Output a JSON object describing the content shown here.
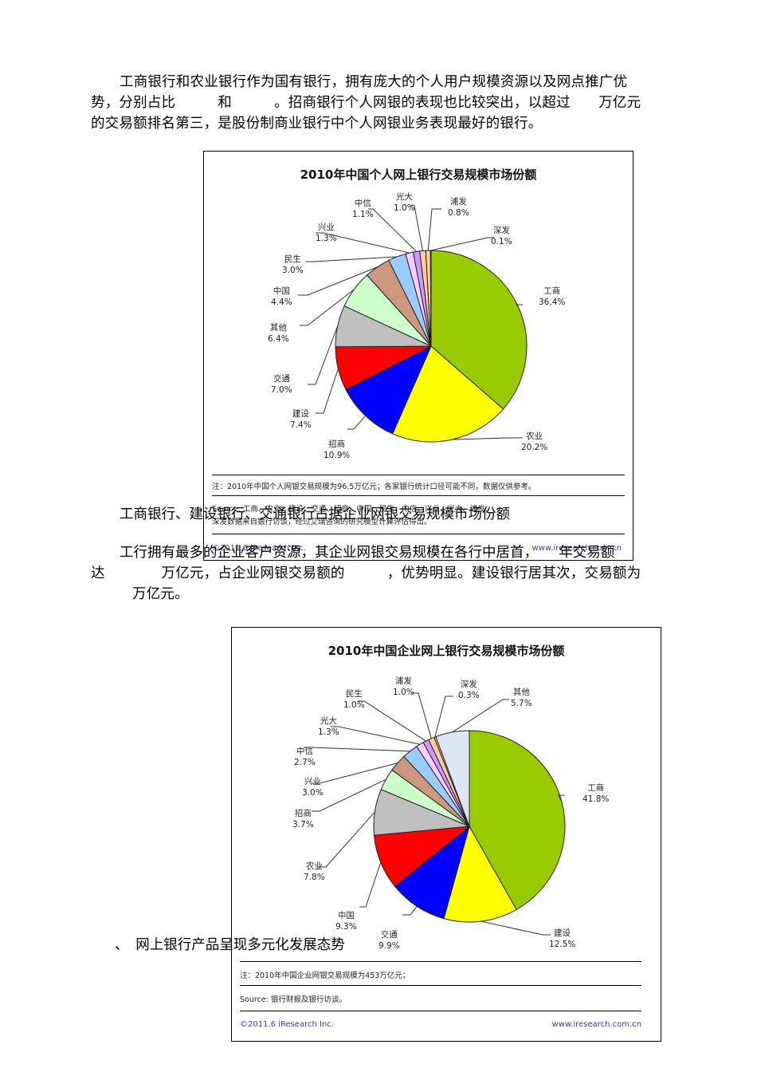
{
  "paragraph1": {
    "line1": "工商银行和农业银行作为国有银行，拥有庞大的个人用户规模资源以及网点推广优",
    "line2": "势，分别占比　　　和　　　。招商银行个人网银的表现也比较突出，以超过　　万亿元",
    "line3": "的交易额排名第三，是股份制商业银行中个人网银业务表现最好的银行。"
  },
  "chart1_footer": {
    "note": "注：2010年中国个人网银交易规模为96.5万亿元；各家银行统计口径可能不同，数据仅供参考。",
    "source_line1": "Source: 工商、农业、建设、交通、招商、中国、民生、中信、兴业、光大、浦发、",
    "source_line2": "深发数据来自银行访谈，经过艾瑞咨询的研究模型计算评估得出。",
    "copyright": "©2011.6 iResearch Inc.",
    "website": "www.iresearch.com.cn"
  },
  "heading2": "工商银行、建设银行、交通银行占据企业网银交易规模市场份额",
  "paragraph2": {
    "line1": "工行拥有最多的企业客户资源，其企业网银交易规模在各行中居首，　　年交易额",
    "line2": "达　　　　万亿元，占企业网银交易额的　　　，优势明显。建设银行居其次，交易额为",
    "line3": "万亿元。"
  },
  "heading3": "、　网上银行产品呈现多元化发展态势",
  "chart2_footer": {
    "note": "注：2010年中国企业网银交易规模为453万亿元；",
    "source": "Source: 银行财报及银行访谈。",
    "copyright": "©2011.6 iResearch Inc.",
    "website": "www.iresearch.com.cn"
  },
  "chart_data": [
    {
      "type": "pie",
      "title": "2010年中国个人网上银行交易规模市场份额",
      "unit": "%",
      "categories": [
        "工商",
        "农业",
        "招商",
        "建设",
        "交通",
        "其他",
        "中国",
        "民生",
        "兴业",
        "中信",
        "光大",
        "浦发",
        "深发"
      ],
      "values": [
        36.4,
        20.2,
        10.9,
        7.4,
        7.0,
        6.4,
        4.4,
        3.0,
        1.3,
        1.1,
        1.0,
        0.8,
        0.1
      ],
      "labels": [
        "36.4%",
        "20.2%",
        "10.9%",
        "7.4%",
        "7.0%",
        "6.4%",
        "4.4%",
        "3.0%",
        "1.3%",
        "1.1%",
        "1.0%",
        "0.8%",
        "0.1%"
      ],
      "colors": [
        "#99cc00",
        "#ffff00",
        "#0000ff",
        "#ff0000",
        "#c0c0c0",
        "#ccffcc",
        "#cc9980",
        "#99ccff",
        "#ffccff",
        "#cc99ff",
        "#ffcc99",
        "#ffcc99",
        "#ffcc99"
      ],
      "total_note": "96.5万亿元"
    },
    {
      "type": "pie",
      "title": "2010年中国企业网上银行交易规模市场份额",
      "unit": "%",
      "categories": [
        "工商",
        "建设",
        "交通",
        "中国",
        "农业",
        "招商",
        "兴业",
        "中信",
        "光大",
        "民生",
        "浦发",
        "深发",
        "其他"
      ],
      "values": [
        41.8,
        12.5,
        9.9,
        9.3,
        7.8,
        3.7,
        3.0,
        2.7,
        1.3,
        1.0,
        1.0,
        0.3,
        5.7
      ],
      "labels": [
        "41.8%",
        "12.5%",
        "9.9%",
        "9.3%",
        "7.8%",
        "3.7%",
        "3.0%",
        "2.7%",
        "1.3%",
        "1.0%",
        "1.0%",
        "0.3%",
        "5.7%"
      ],
      "colors": [
        "#99cc00",
        "#ffff00",
        "#0000ff",
        "#ff0000",
        "#c0c0c0",
        "#ccffcc",
        "#cc9980",
        "#99ccff",
        "#ffccff",
        "#cc99ff",
        "#ffcc99",
        "#ffcc99",
        "#dce6f2"
      ],
      "total_note": "453万亿元"
    }
  ]
}
